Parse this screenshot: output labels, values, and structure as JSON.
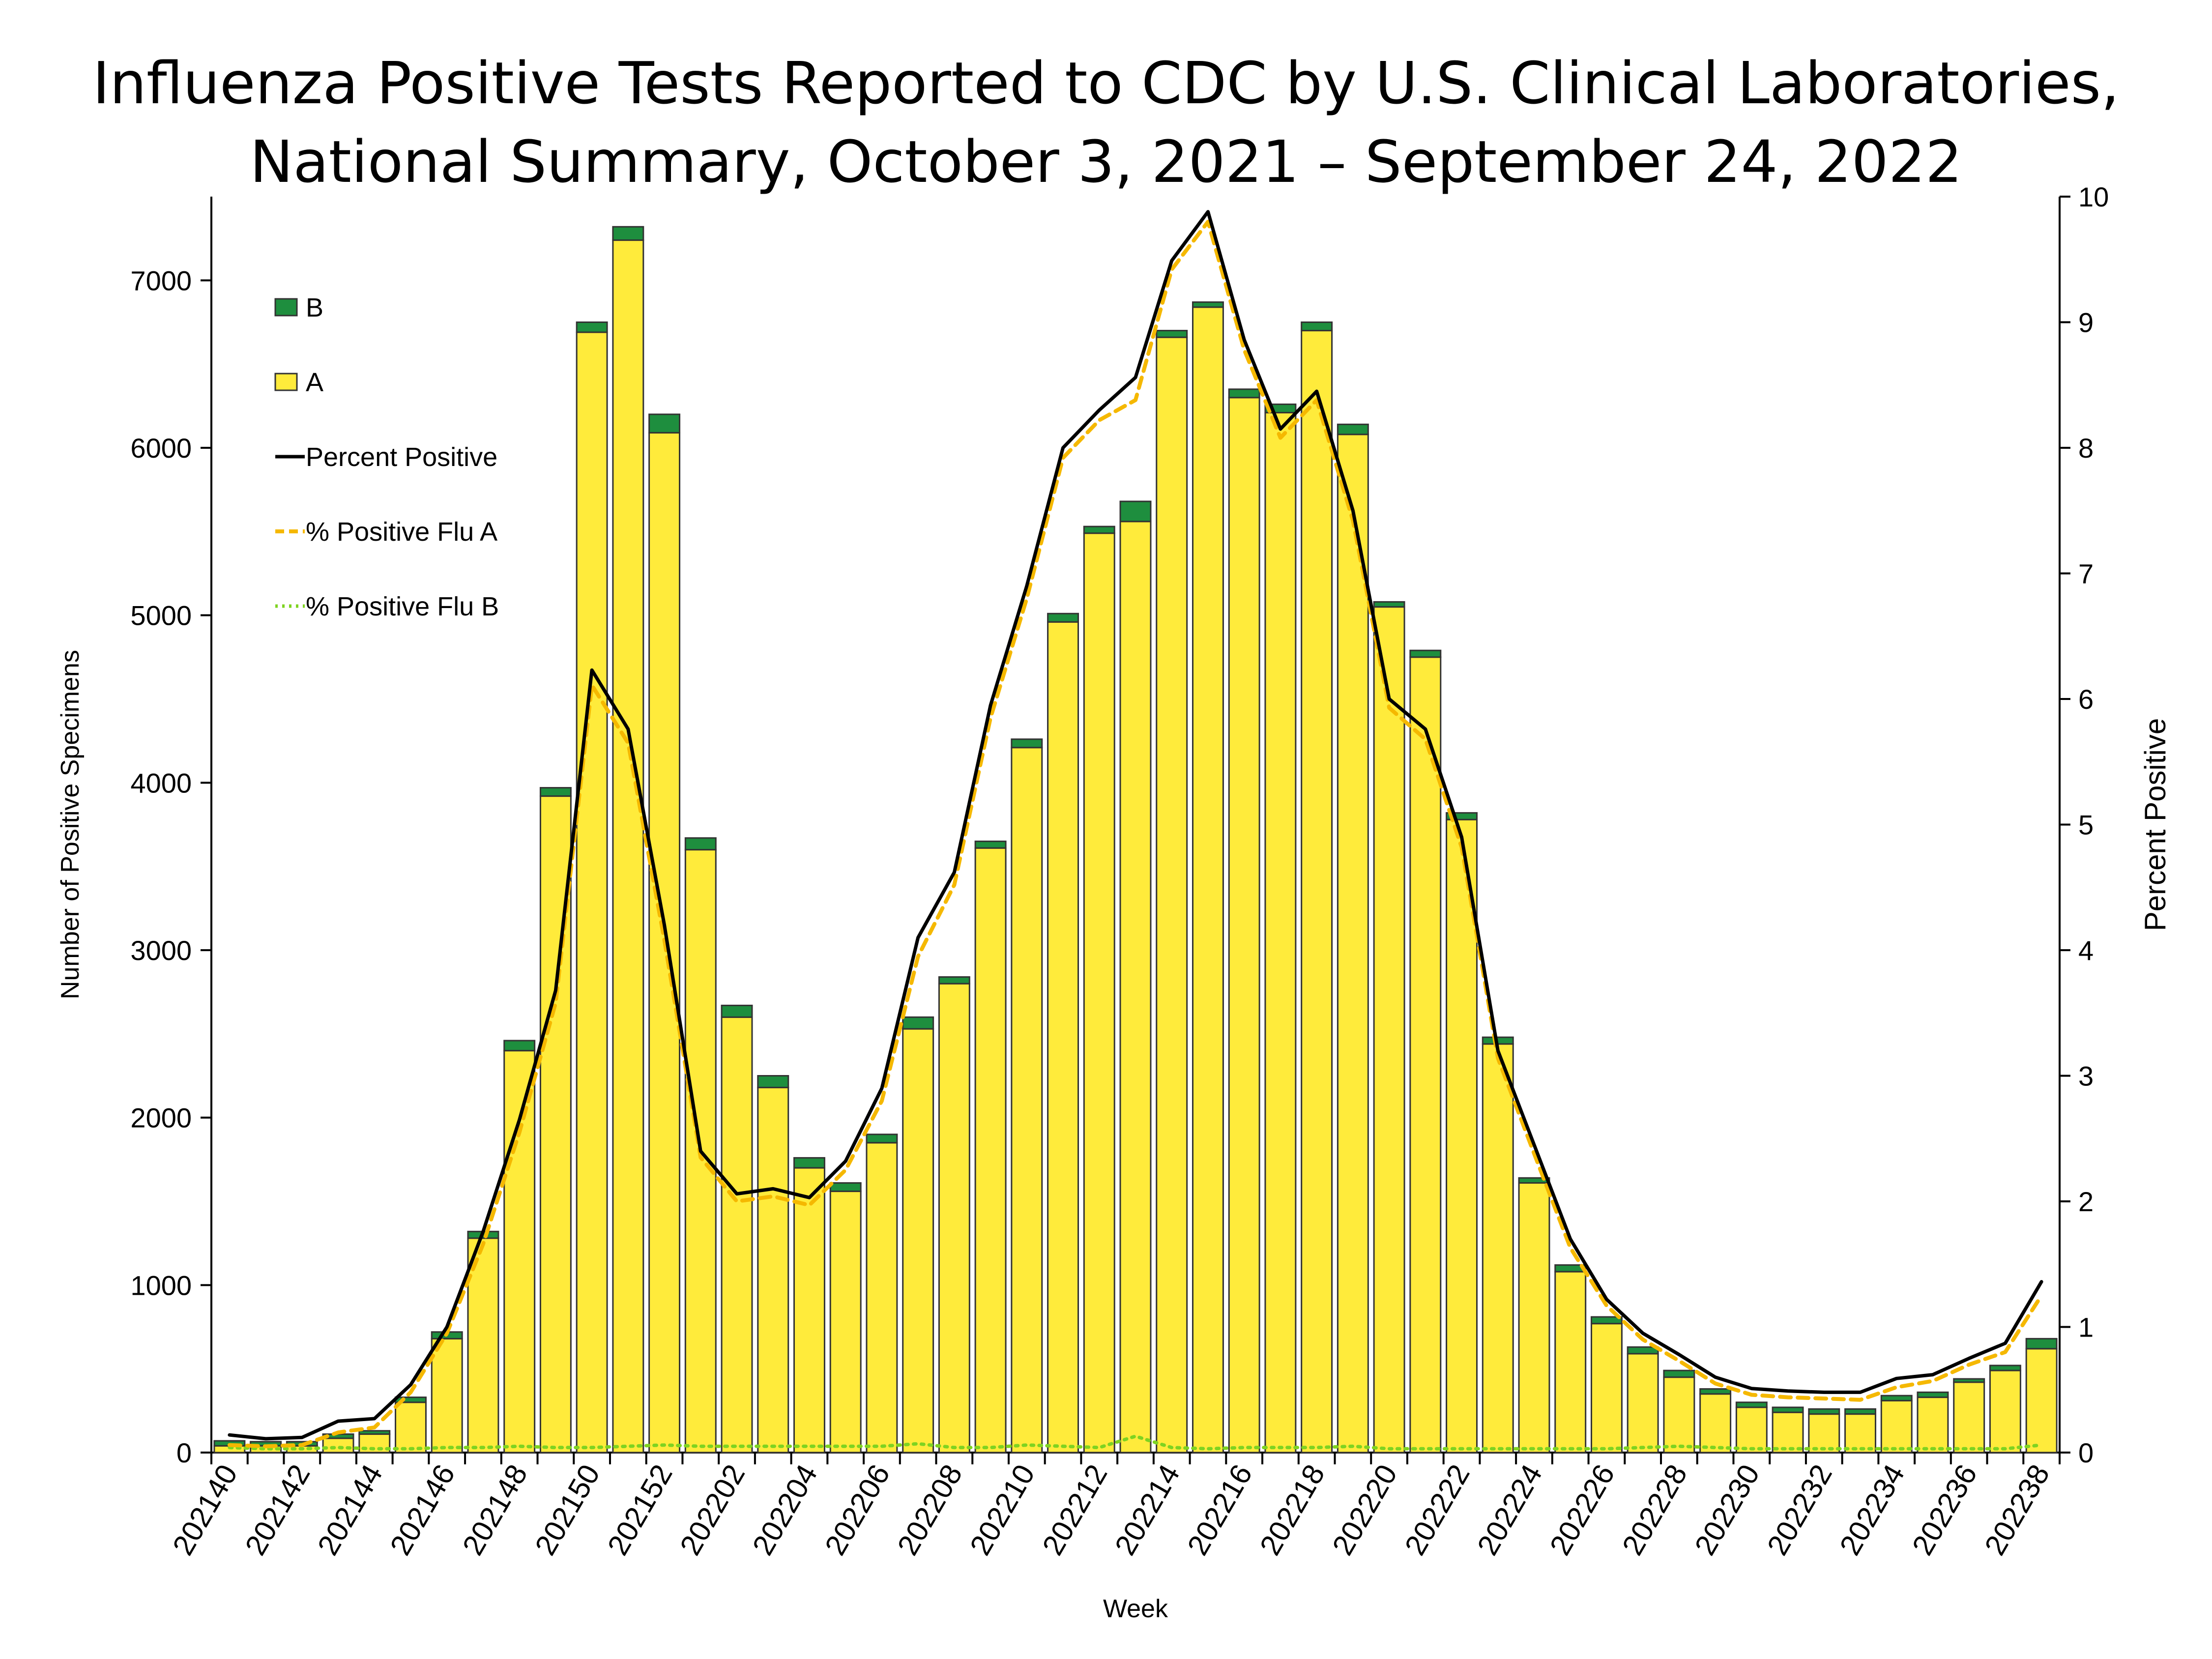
{
  "title_lines": [
    "Influenza Positive Tests Reported to CDC by U.S. Clinical Laboratories,",
    "National Summary, October 3, 2021 – September 24, 2022"
  ],
  "colors": {
    "flu_a_bar": "#FFEB3B",
    "flu_b_bar": "#1E8E3E",
    "bar_outline": "#333333",
    "percent_positive_line": "#000000",
    "pct_flu_a_line": "#F5B800",
    "pct_flu_b_line": "#7ED321"
  },
  "chart_data": {
    "type": "bar",
    "stacked": true,
    "dual_axis": true,
    "xlabel": "Week",
    "ylabel": "Number of Positive Specimens",
    "y2label": "Percent Positive",
    "ylim": [
      0,
      7500
    ],
    "y2lim": [
      0,
      10
    ],
    "yticks": [
      0,
      1000,
      2000,
      3000,
      4000,
      5000,
      6000,
      7000
    ],
    "y2ticks": [
      0,
      1,
      2,
      3,
      4,
      5,
      6,
      7,
      8,
      9,
      10
    ],
    "xtick_labels": [
      "202140",
      "202142",
      "202144",
      "202146",
      "202148",
      "202150",
      "202152",
      "202202",
      "202204",
      "202206",
      "202208",
      "202210",
      "202212",
      "202214",
      "202216",
      "202218",
      "202220",
      "202222",
      "202224",
      "202226",
      "202228",
      "202230",
      "202232",
      "202234",
      "202236",
      "202238"
    ],
    "legend_position": "top-left",
    "legend": [
      {
        "label": "B",
        "kind": "bar-b"
      },
      {
        "label": "A",
        "kind": "bar-a"
      },
      {
        "label": "Percent Positive",
        "kind": "line-pct"
      },
      {
        "label": "% Positive Flu A",
        "kind": "line-a"
      },
      {
        "label": "% Positive Flu B",
        "kind": "line-b"
      }
    ],
    "weeks": [
      "202140",
      "202141",
      "202142",
      "202143",
      "202144",
      "202145",
      "202146",
      "202147",
      "202148",
      "202149",
      "202150",
      "202151",
      "202152",
      "202201",
      "202202",
      "202203",
      "202204",
      "202205",
      "202206",
      "202207",
      "202208",
      "202209",
      "202210",
      "202211",
      "202212",
      "202213",
      "202214",
      "202215",
      "202216",
      "202217",
      "202218",
      "202219",
      "202220",
      "202221",
      "202222",
      "202223",
      "202224",
      "202225",
      "202226",
      "202227",
      "202228",
      "202229",
      "202230",
      "202231",
      "202232",
      "202233",
      "202234",
      "202235",
      "202236",
      "202237",
      "202238"
    ],
    "series": [
      {
        "name": "A",
        "kind": "bar",
        "values": [
          40,
          40,
          40,
          85,
          110,
          300,
          680,
          1280,
          2400,
          3920,
          6690,
          7240,
          6090,
          3600,
          2600,
          2180,
          1700,
          1560,
          1850,
          2530,
          2800,
          3610,
          4210,
          4960,
          5490,
          5560,
          6660,
          6840,
          6300,
          6210,
          6700,
          6080,
          5050,
          4750,
          3780,
          2440,
          1610,
          1080,
          770,
          590,
          450,
          350,
          270,
          240,
          230,
          230,
          310,
          330,
          420,
          490,
          620
        ]
      },
      {
        "name": "B",
        "kind": "bar",
        "values": [
          30,
          25,
          25,
          25,
          20,
          30,
          40,
          40,
          60,
          50,
          60,
          80,
          110,
          70,
          70,
          70,
          60,
          50,
          50,
          70,
          40,
          40,
          50,
          50,
          40,
          120,
          40,
          30,
          50,
          50,
          50,
          60,
          30,
          40,
          40,
          40,
          30,
          40,
          40,
          40,
          40,
          30,
          30,
          30,
          30,
          30,
          30,
          30,
          20,
          30,
          60
        ]
      },
      {
        "name": "Percent Positive",
        "kind": "line",
        "axis": "right",
        "values": [
          0.14,
          0.11,
          0.12,
          0.25,
          0.27,
          0.54,
          1.0,
          1.76,
          2.65,
          3.68,
          6.23,
          5.76,
          4.2,
          2.4,
          2.06,
          2.1,
          2.03,
          2.32,
          2.9,
          4.1,
          4.62,
          5.95,
          6.9,
          8.0,
          8.3,
          8.56,
          9.49,
          9.88,
          8.86,
          8.15,
          8.45,
          7.5,
          6.0,
          5.76,
          4.9,
          3.2,
          2.45,
          1.7,
          1.22,
          0.95,
          0.78,
          0.6,
          0.51,
          0.49,
          0.48,
          0.48,
          0.59,
          0.62,
          0.75,
          0.87,
          1.36
        ]
      },
      {
        "name": "% Positive Flu A",
        "kind": "line",
        "axis": "right",
        "values": [
          0.06,
          0.05,
          0.06,
          0.16,
          0.2,
          0.48,
          0.95,
          1.66,
          2.55,
          3.58,
          6.11,
          5.65,
          4.08,
          2.35,
          2.0,
          2.04,
          1.97,
          2.25,
          2.8,
          3.95,
          4.52,
          5.85,
          6.8,
          7.92,
          8.22,
          8.38,
          9.42,
          9.8,
          8.78,
          8.08,
          8.38,
          7.42,
          5.93,
          5.68,
          4.82,
          3.14,
          2.38,
          1.63,
          1.17,
          0.9,
          0.73,
          0.55,
          0.46,
          0.44,
          0.43,
          0.42,
          0.52,
          0.57,
          0.7,
          0.8,
          1.25
        ]
      },
      {
        "name": "% Positive Flu B",
        "kind": "line",
        "axis": "right",
        "values": [
          0.04,
          0.03,
          0.03,
          0.04,
          0.03,
          0.03,
          0.04,
          0.04,
          0.05,
          0.04,
          0.04,
          0.05,
          0.06,
          0.05,
          0.05,
          0.05,
          0.05,
          0.05,
          0.05,
          0.07,
          0.04,
          0.04,
          0.06,
          0.05,
          0.04,
          0.13,
          0.04,
          0.03,
          0.04,
          0.04,
          0.04,
          0.05,
          0.03,
          0.03,
          0.03,
          0.03,
          0.03,
          0.03,
          0.03,
          0.04,
          0.05,
          0.04,
          0.03,
          0.03,
          0.03,
          0.03,
          0.03,
          0.03,
          0.03,
          0.03,
          0.06
        ]
      }
    ]
  }
}
